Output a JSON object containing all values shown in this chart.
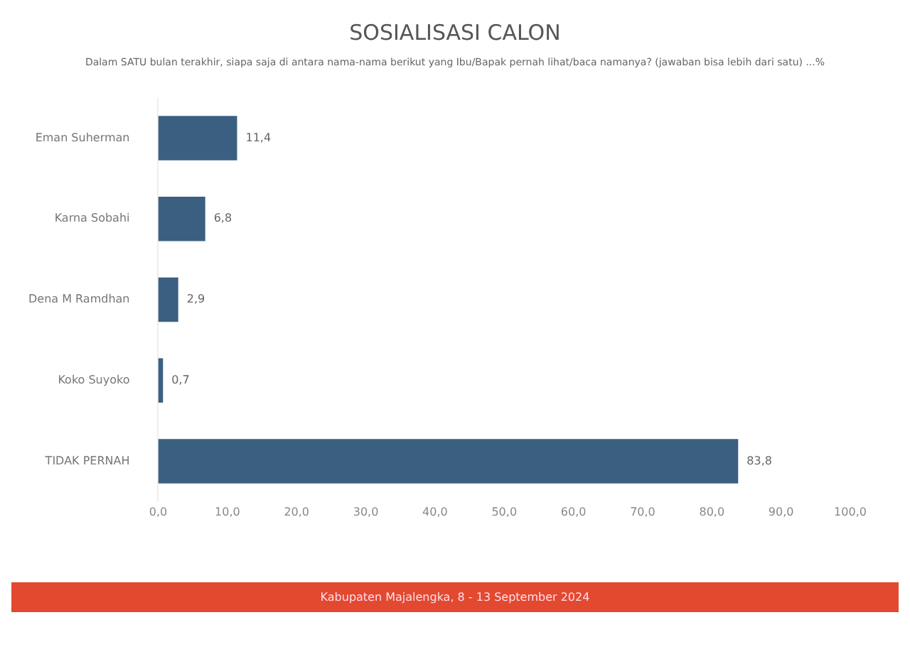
{
  "chart_data": {
    "type": "bar",
    "orientation": "horizontal",
    "title": "SOSIALISASI CALON",
    "subtitle": "Dalam SATU bulan terakhir, siapa saja di antara nama-nama berikut yang Ibu/Bapak pernah lihat/baca namanya? (jawaban bisa lebih dari satu) ...%",
    "categories": [
      "Eman Suherman",
      "Karna Sobahi",
      "Dena M Ramdhan",
      "Koko Suyoko",
      "TIDAK PERNAH"
    ],
    "values": [
      11.4,
      6.8,
      2.9,
      0.7,
      83.8
    ],
    "value_labels": [
      "11,4",
      "6,8",
      "2,9",
      "0,7",
      "83,8"
    ],
    "color": "#3b5f80",
    "xlim": [
      0,
      100
    ],
    "xticks": [
      {
        "value": 0,
        "label": "0,0"
      },
      {
        "value": 10,
        "label": "10,0"
      },
      {
        "value": 20,
        "label": "20,0"
      },
      {
        "value": 30,
        "label": "30,0"
      },
      {
        "value": 40,
        "label": "40,0"
      },
      {
        "value": 50,
        "label": "50,0"
      },
      {
        "value": 60,
        "label": "60,0"
      },
      {
        "value": 70,
        "label": "70,0"
      },
      {
        "value": 80,
        "label": "80,0"
      },
      {
        "value": 90,
        "label": "90,0"
      },
      {
        "value": 100,
        "label": "100,0"
      }
    ],
    "grid": false,
    "legend": false,
    "annotations": [
      "Kabupaten Majalengka, 8 - 13 September 2024"
    ]
  }
}
